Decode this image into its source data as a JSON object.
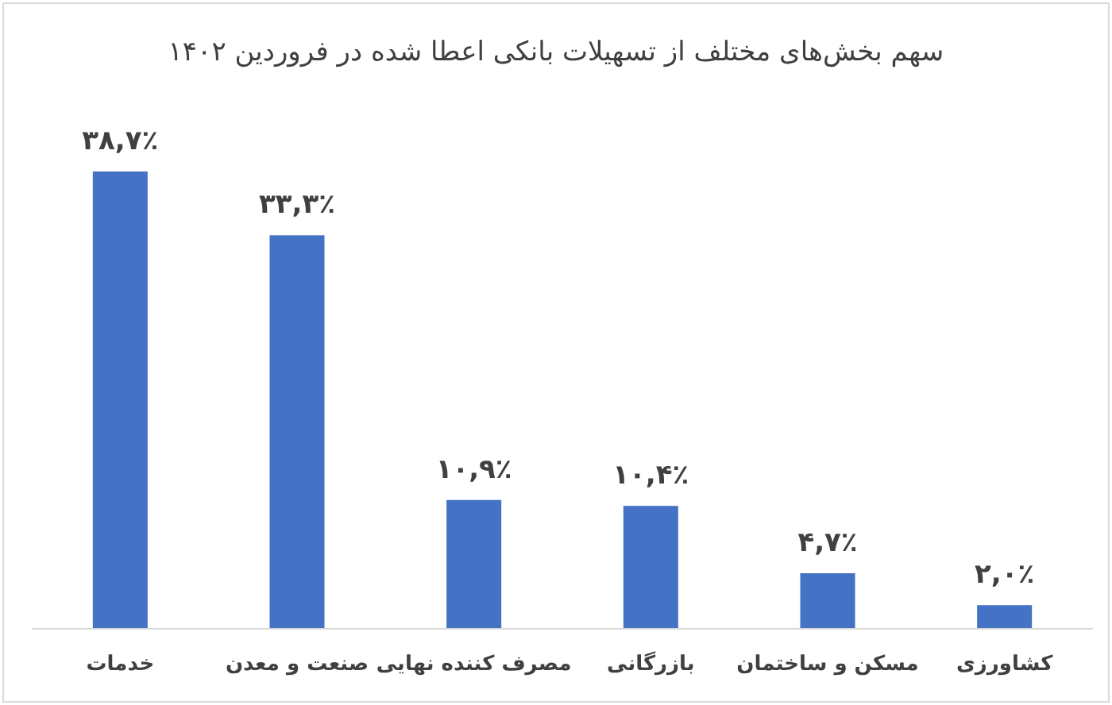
{
  "chart_data": {
    "type": "bar",
    "title": "سهم بخش‌های مختلف از تسهیلات بانکی اعطا شده در فروردین ۱۴۰۲",
    "categories": [
      "خدمات",
      "صنعت و معدن",
      "مصرف کننده نهایی",
      "بازرگانی",
      "مسکن و ساختمان",
      "کشاورزی"
    ],
    "values": [
      38.7,
      33.3,
      10.9,
      10.4,
      4.7,
      2.0
    ],
    "value_labels": [
      "۳۸,۷٪",
      "۳۳,۳٪",
      "۱۰,۹٪",
      "۱۰,۴٪",
      "۴,۷٪",
      "۲,۰٪"
    ],
    "color": "#4472c4"
  }
}
